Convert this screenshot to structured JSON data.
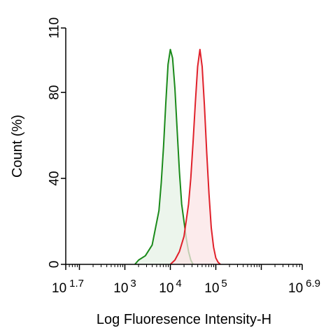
{
  "chart_data": {
    "type": "area",
    "title": "",
    "xlabel": "Log Fluoresence Intensity-H",
    "ylabel": "Count  (%)",
    "x_scale": "log",
    "xlim": [
      50.12,
      7943282
    ],
    "ylim": [
      0,
      110
    ],
    "y_ticks": [
      0,
      40,
      80,
      110
    ],
    "x_tick_labels": [
      {
        "value": 50.12,
        "base": "10",
        "exp": "1.7"
      },
      {
        "value": 1000,
        "base": "10",
        "exp": "3"
      },
      {
        "value": 10000,
        "base": "10",
        "exp": "4"
      },
      {
        "value": 100000,
        "base": "10",
        "exp": "5"
      },
      {
        "value": 7943282,
        "base": "10",
        "exp": "6.9"
      }
    ],
    "grid": false,
    "legend": "none",
    "series": [
      {
        "color": "#1a8a1a",
        "fill": "#e6f2e6",
        "x": [
          1660,
          2000,
          2820,
          3980,
          5620,
          6310,
          7080,
          7940,
          8910,
          10000,
          11220,
          12590,
          14130,
          15850,
          17780,
          19950,
          22390,
          25120,
          28180,
          31620
        ],
        "y": [
          0,
          2,
          4,
          9,
          25,
          38,
          55,
          75,
          93,
          100,
          96,
          82,
          62,
          43,
          28,
          20,
          12,
          6,
          2,
          0
        ]
      },
      {
        "color": "#e0202a",
        "fill": "#fbe4e6",
        "x": [
          10000,
          12590,
          15850,
          19950,
          25120,
          28180,
          31620,
          35480,
          39810,
          44670,
          50120,
          56230,
          63100,
          70790,
          79430,
          89130,
          100000,
          112200,
          125900
        ],
        "y": [
          0,
          2,
          6,
          13,
          28,
          40,
          57,
          75,
          92,
          100,
          92,
          74,
          52,
          33,
          17,
          8,
          3,
          1,
          0
        ]
      }
    ]
  }
}
